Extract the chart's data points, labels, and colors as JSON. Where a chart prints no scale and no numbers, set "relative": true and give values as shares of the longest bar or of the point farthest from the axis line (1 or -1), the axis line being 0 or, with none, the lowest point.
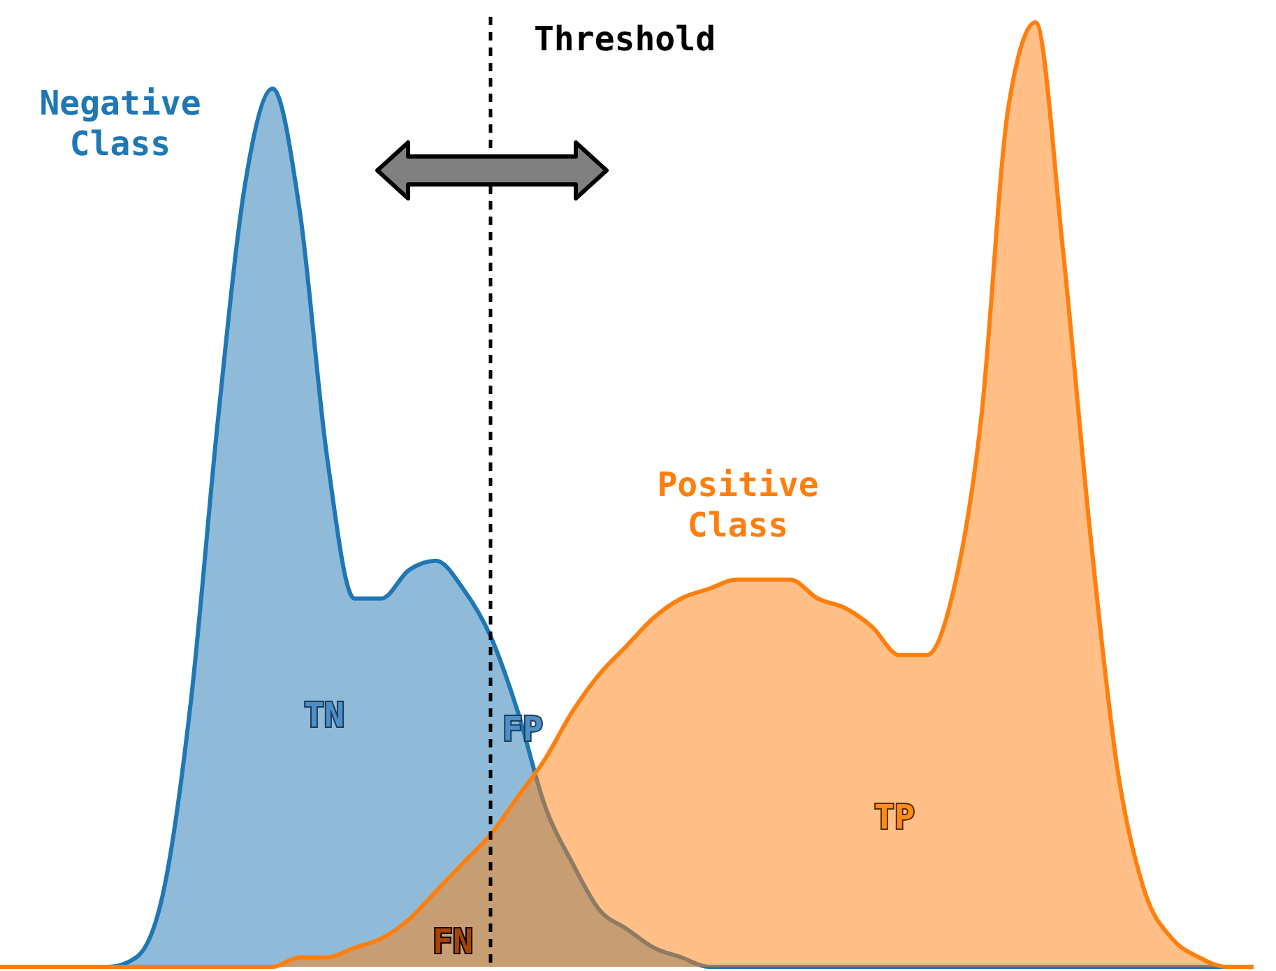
{
  "chart_data": {
    "type": "area",
    "relative": true,
    "categories": [
      null,
      null,
      null,
      null,
      null,
      null,
      null,
      null,
      null,
      null,
      null,
      null,
      null,
      null,
      null,
      null,
      null,
      null,
      null,
      null,
      null,
      null,
      null,
      null,
      null,
      null,
      null,
      null,
      null,
      null,
      null,
      null,
      null,
      null,
      null,
      null,
      null,
      null,
      null,
      null,
      null,
      null,
      null,
      null,
      null,
      null,
      null
    ],
    "series": [
      {
        "color": "#1f77b4",
        "values": [
          0,
          0,
          0,
          0,
          0,
          0.01,
          0.08,
          0.28,
          0.58,
          0.83,
          0.93,
          0.8,
          0.54,
          0.39,
          0.39,
          0.42,
          0.43,
          0.4,
          0.35,
          0.27,
          0.17,
          0.11,
          0.06,
          0.04,
          0.02,
          0.01,
          0,
          0,
          0,
          0,
          0,
          0,
          0,
          0,
          0,
          0,
          0,
          0,
          0,
          0,
          0,
          0,
          0,
          0,
          0,
          0,
          0
        ]
      },
      {
        "color": "#ff7f0e",
        "values": [
          0,
          0,
          0,
          0,
          0,
          0,
          0,
          0,
          0,
          0,
          0,
          0.01,
          0.01,
          0.02,
          0.03,
          0.05,
          0.08,
          0.11,
          0.14,
          0.18,
          0.22,
          0.27,
          0.31,
          0.34,
          0.37,
          0.39,
          0.4,
          0.41,
          0.41,
          0.41,
          0.39,
          0.38,
          0.36,
          0.33,
          0.33,
          0.4,
          0.58,
          0.91,
          1,
          0.76,
          0.46,
          0.21,
          0.08,
          0.03,
          0.01,
          0,
          0
        ]
      }
    ],
    "annotations": [
      "Negative Class",
      "Positive Class",
      "TN",
      "FP",
      "FN",
      "TP",
      "Threshold"
    ]
  }
}
